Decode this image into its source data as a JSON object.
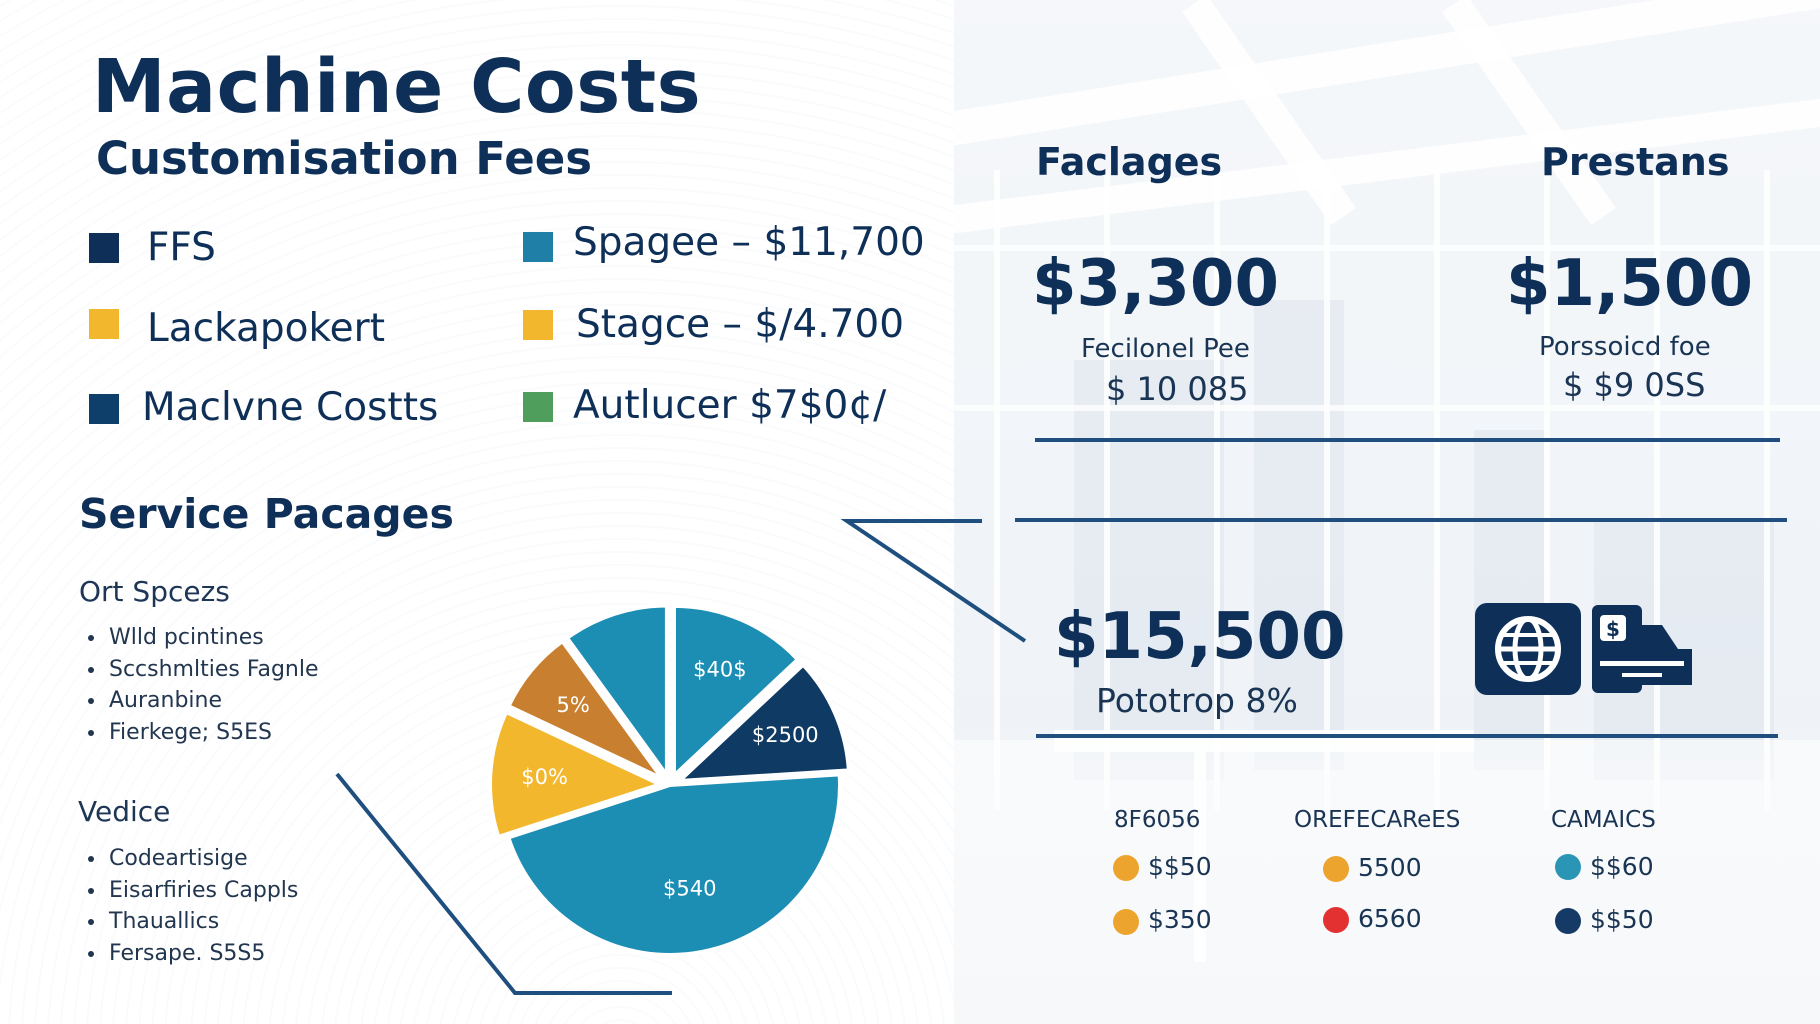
{
  "colors": {
    "navy": "#0e2f57",
    "teal": "#1c8db3",
    "gold": "#f2b72d",
    "bronze": "#c97f30",
    "green": "#4f9e5c",
    "rule": "#1f4f7e",
    "orange_dot": "#eda42e",
    "red_dot": "#e33030"
  },
  "header": {
    "title": "Machine Costs",
    "subtitle": "Customisation Fees"
  },
  "legend": {
    "items": [
      {
        "label": "FFS",
        "color": "#0e2f57"
      },
      {
        "label": "Lackapokert",
        "color": "#f2b72d"
      },
      {
        "label": "Maclvne Costts",
        "color": "#0e3f6a"
      },
      {
        "label": "Spagee –  $11,700",
        "color": "#1f7fa7"
      },
      {
        "label": "Stagce –  $/4.700",
        "color": "#f2b72d"
      },
      {
        "label": "Autlucer $7$0¢/",
        "color": "#4f9e5c"
      }
    ]
  },
  "service": {
    "heading": "Service Pacages",
    "group1": {
      "heading": "Ort Spcezs",
      "items": [
        "Wlld pcintines",
        "Sccshmlties Fagnle",
        "Auranbine",
        "Fierkege; S5ES"
      ]
    },
    "group2": {
      "heading": "Vedice",
      "items": [
        "Codeartisige",
        "Eisarfiries Cappls",
        "Thauallics",
        "Fersape. S5S5"
      ]
    }
  },
  "chart_data": {
    "type": "pie",
    "slices": [
      {
        "label": "$40$",
        "value": 13,
        "color": "#1c8db3"
      },
      {
        "label": "$2500",
        "value": 11,
        "color": "#0e3a63"
      },
      {
        "label": "$540",
        "value": 46,
        "color": "#1c8db3"
      },
      {
        "label": "$0%",
        "value": 12,
        "color": "#f2b72d"
      },
      {
        "label": "5%",
        "value": 8,
        "color": "#c97f30"
      },
      {
        "label": "",
        "value": 10,
        "color": "#1c8db3"
      }
    ]
  },
  "packages": {
    "heading": "Faclages",
    "value": "$3,300",
    "label": "Fecilonel Pee",
    "sub_value": "$ 10 085"
  },
  "presets": {
    "heading": "Prestans",
    "value": "$1,500",
    "label": "Porssoicd foe",
    "sub_value": "$ $9 0SS"
  },
  "total": {
    "value": "$15,500",
    "label": "Pototrop 8%",
    "icons": [
      "globe-icon",
      "payment-icon"
    ]
  },
  "footer_columns": [
    {
      "heading": "8F6056",
      "items": [
        {
          "text": "$$50",
          "dot": "#eda42e"
        },
        {
          "text": "$350",
          "dot": "#eda42e"
        }
      ]
    },
    {
      "heading": "OREFECAReES",
      "items": [
        {
          "text": "5500",
          "dot": "#eda42e"
        },
        {
          "text": "6560",
          "dot": "#e33030"
        }
      ]
    },
    {
      "heading": "CAMAICS",
      "items": [
        {
          "text": "$$60",
          "dot": "#2b95b5"
        },
        {
          "text": "$$50",
          "dot": "#163a66"
        }
      ]
    }
  ]
}
